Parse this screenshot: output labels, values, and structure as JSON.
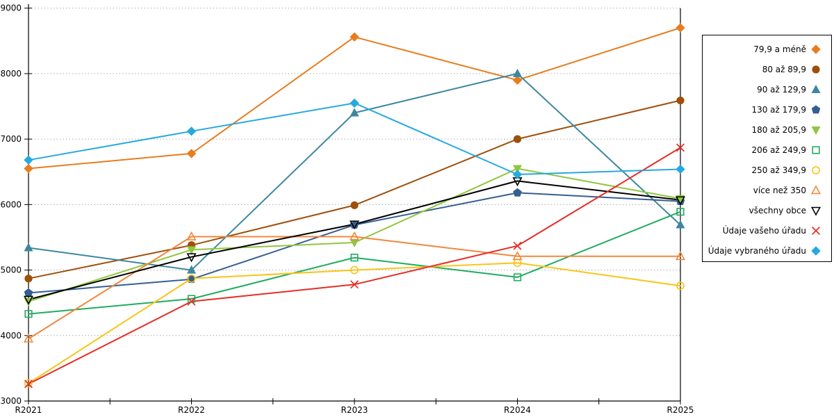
{
  "chart_data": {
    "type": "line",
    "title": "",
    "xlabel": "",
    "ylabel": "",
    "categories": [
      "R2021",
      "R2022",
      "R2023",
      "R2024",
      "R2025"
    ],
    "ylim": [
      3000,
      9000
    ],
    "yticks": [
      3000,
      4000,
      5000,
      6000,
      7000,
      8000,
      9000
    ],
    "grid": "horizontal-dotted",
    "legend_position": "right",
    "axis_color": "#000000",
    "gridline_color": "#aaaaaa",
    "series": [
      {
        "name": "79,9 a méně",
        "marker": "diamond",
        "filled": true,
        "color": "#e87d1e",
        "values": [
          6550,
          6780,
          8560,
          7900,
          8700
        ]
      },
      {
        "name": "80 až 89,9",
        "marker": "circle",
        "filled": true,
        "color": "#9e4f0a",
        "values": [
          4870,
          5380,
          5990,
          7000,
          7590
        ]
      },
      {
        "name": "90 až 129,9",
        "marker": "triangle-up",
        "filled": true,
        "color": "#3d87a0",
        "values": [
          5340,
          5000,
          7400,
          8000,
          5690
        ]
      },
      {
        "name": "130 až 179,9",
        "marker": "pentagon",
        "filled": true,
        "color": "#355f90",
        "values": [
          4650,
          4860,
          5690,
          6180,
          6050
        ]
      },
      {
        "name": "180 až 205,9",
        "marker": "triangle-down",
        "filled": true,
        "color": "#8fc73e",
        "values": [
          4520,
          5310,
          5420,
          6550,
          6090
        ]
      },
      {
        "name": "206 až 249,9",
        "marker": "square",
        "filled": false,
        "color": "#1fac5f",
        "values": [
          4330,
          4560,
          5190,
          4890,
          5890
        ]
      },
      {
        "name": "250 až 349,9",
        "marker": "circle",
        "filled": false,
        "color": "#f8c516",
        "values": [
          3270,
          4870,
          5000,
          5110,
          4760
        ]
      },
      {
        "name": "více než 350",
        "marker": "triangle-up",
        "filled": false,
        "color": "#f1873c",
        "values": [
          3950,
          5510,
          5510,
          5210,
          5210
        ]
      },
      {
        "name": "všechny obce",
        "marker": "triangle-down",
        "filled": false,
        "color": "#000000",
        "values": [
          4550,
          5200,
          5700,
          6360,
          6070
        ]
      },
      {
        "name": "Údaje vašeho úřadu",
        "marker": "x",
        "filled": false,
        "color": "#e72c26",
        "values": [
          3260,
          4520,
          4780,
          5370,
          6870
        ]
      },
      {
        "name": "Údaje vybraného úřadu",
        "marker": "diamond",
        "filled": true,
        "color": "#25a9e0",
        "values": [
          6680,
          7120,
          7550,
          6460,
          6540
        ]
      }
    ]
  }
}
